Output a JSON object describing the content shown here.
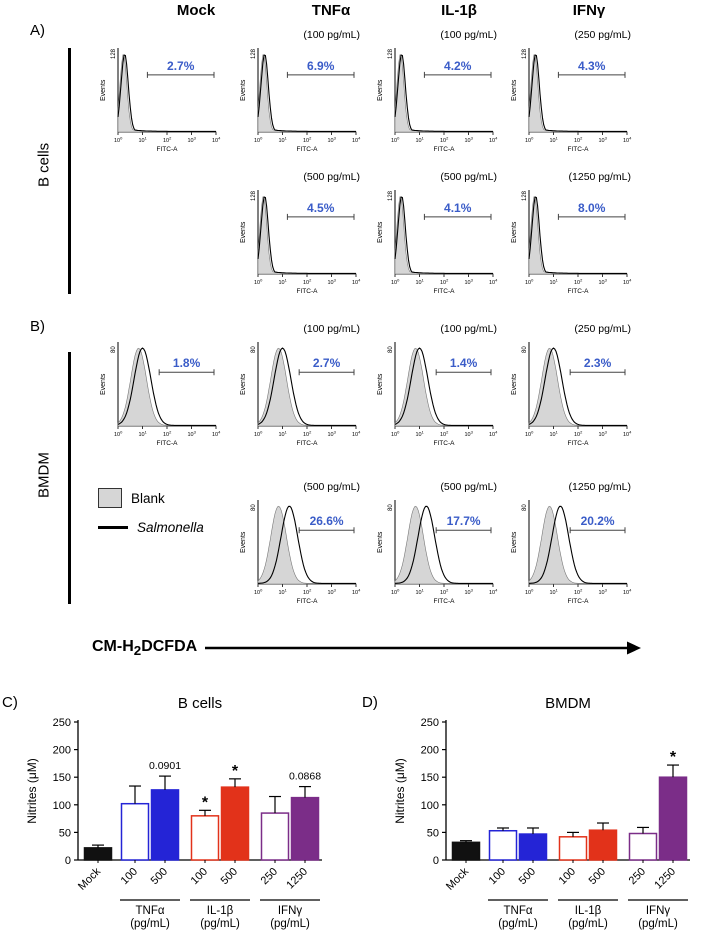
{
  "colors": {
    "percent_blue": "#3a5cc8",
    "bar_blue": "#2424d6",
    "bar_red": "#e2321a",
    "bar_purple": "#7b2d88",
    "hist_fill": "#d6d6d6"
  },
  "figure": {
    "column_headers": [
      {
        "label": "Mock"
      },
      {
        "label": "TNFα"
      },
      {
        "label": "IL-1β"
      },
      {
        "label": "IFNγ"
      }
    ],
    "panel_letters": {
      "a": "A)",
      "b": "B)",
      "c": "C)",
      "d": "D)"
    },
    "row_labels": {
      "a": "B cells",
      "b": "BMDM"
    },
    "legend": {
      "blank": "Blank",
      "salmonella": "Salmonella"
    },
    "x_axis_title": {
      "pre": "CM-H",
      "sub": "2",
      "post": "DCFDA"
    }
  },
  "chart_data": [
    {
      "type": "histogram",
      "panel": "A)",
      "row_label": "B cells",
      "y_axis": "Events",
      "y_max": "128",
      "x_axis": "FITC-A",
      "x_ticks": [
        "10^0",
        "10^1",
        "10^2",
        "10^3",
        "10^4"
      ],
      "cells": [
        [
          {
            "condition": "Mock",
            "dose": "",
            "percent": "2.7%"
          },
          {
            "condition": "TNFα",
            "dose": "(100 pg/mL)",
            "percent": "6.9%"
          },
          {
            "condition": "IL-1β",
            "dose": "(100 pg/mL)",
            "percent": "4.2%"
          },
          {
            "condition": "IFNγ",
            "dose": "(250 pg/mL)",
            "percent": "4.3%"
          }
        ],
        [
          null,
          {
            "condition": "TNFα",
            "dose": "(500 pg/mL)",
            "percent": "4.5%"
          },
          {
            "condition": "IL-1β",
            "dose": "(500 pg/mL)",
            "percent": "4.1%"
          },
          {
            "condition": "IFNγ",
            "dose": "(1250 pg/mL)",
            "percent": "8.0%"
          }
        ]
      ]
    },
    {
      "type": "histogram",
      "panel": "B)",
      "row_label": "BMDM",
      "y_axis": "Events",
      "y_max": "80",
      "x_axis": "FITC-A",
      "x_ticks": [
        "10^0",
        "10^1",
        "10^2",
        "10^3",
        "10^4"
      ],
      "cells": [
        [
          {
            "condition": "Mock",
            "dose": "",
            "percent": "1.8%"
          },
          {
            "condition": "TNFα",
            "dose": "(100 pg/mL)",
            "percent": "2.7%"
          },
          {
            "condition": "IL-1β",
            "dose": "(100 pg/mL)",
            "percent": "1.4%"
          },
          {
            "condition": "IFNγ",
            "dose": "(250 pg/mL)",
            "percent": "2.3%"
          }
        ],
        [
          {
            "legend": true
          },
          {
            "condition": "TNFα",
            "dose": "(500 pg/mL)",
            "percent": "26.6%"
          },
          {
            "condition": "IL-1β",
            "dose": "(500 pg/mL)",
            "percent": "17.7%"
          },
          {
            "condition": "IFNγ",
            "dose": "(1250 pg/mL)",
            "percent": "20.2%"
          }
        ]
      ]
    },
    {
      "type": "bar",
      "panel": "C)",
      "title": "B cells",
      "ylabel": "Nitrites (μM)",
      "ylim": [
        0,
        250
      ],
      "yticks": [
        0,
        50,
        100,
        150,
        200,
        250
      ],
      "categories": [
        "Mock",
        "100",
        "500",
        "100",
        "500",
        "250",
        "1250"
      ],
      "values": [
        22,
        102,
        127,
        80,
        132,
        85,
        113
      ],
      "errors": [
        5,
        32,
        25,
        10,
        15,
        30,
        20
      ],
      "bar_styles": [
        "black",
        "blue-outline",
        "blue",
        "red-outline",
        "red",
        "purple-outline",
        "purple"
      ],
      "annotations": [
        {
          "bar": 2,
          "text": "0.0901"
        },
        {
          "bar": 3,
          "text": "*"
        },
        {
          "bar": 4,
          "text": "*"
        },
        {
          "bar": 6,
          "text": "0.0868"
        }
      ],
      "groups": [
        {
          "label": "TNFα",
          "sub": "(pg/mL)",
          "bars": [
            1,
            2
          ]
        },
        {
          "label": "IL-1β",
          "sub": "(pg/mL)",
          "bars": [
            3,
            4
          ]
        },
        {
          "label": "IFNγ",
          "sub": "(pg/mL)",
          "bars": [
            5,
            6
          ]
        }
      ]
    },
    {
      "type": "bar",
      "panel": "D)",
      "title": "BMDM",
      "ylabel": "Nitrites (μM)",
      "ylim": [
        0,
        250
      ],
      "yticks": [
        0,
        50,
        100,
        150,
        200,
        250
      ],
      "categories": [
        "Mock",
        "100",
        "500",
        "100",
        "500",
        "250",
        "1250"
      ],
      "values": [
        32,
        53,
        47,
        42,
        54,
        48,
        150
      ],
      "errors": [
        3,
        5,
        11,
        8,
        13,
        11,
        22
      ],
      "bar_styles": [
        "black",
        "blue-outline",
        "blue",
        "red-outline",
        "red",
        "purple-outline",
        "purple"
      ],
      "annotations": [
        {
          "bar": 6,
          "text": "*"
        }
      ],
      "groups": [
        {
          "label": "TNFα",
          "sub": "(pg/mL)",
          "bars": [
            1,
            2
          ]
        },
        {
          "label": "IL-1β",
          "sub": "(pg/mL)",
          "bars": [
            3,
            4
          ]
        },
        {
          "label": "IFNγ",
          "sub": "(pg/mL)",
          "bars": [
            5,
            6
          ]
        }
      ]
    }
  ]
}
